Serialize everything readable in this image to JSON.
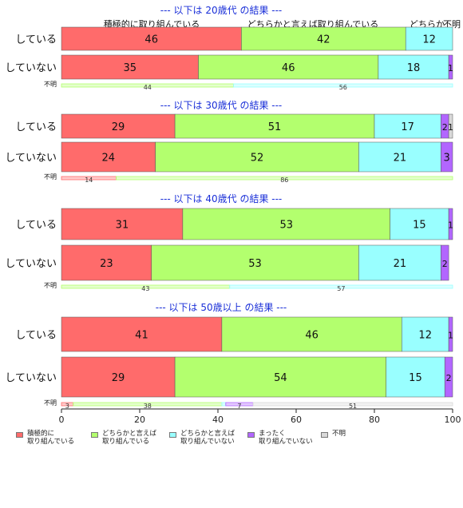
{
  "chart_data": {
    "type": "bar",
    "orientation": "horizontal",
    "stacked": true,
    "xlim": [
      0,
      100
    ],
    "xticks": [
      0,
      20,
      40,
      60,
      80,
      100
    ],
    "categories_legend": [
      "積極的に\n取り組んでいる",
      "どちらかと言えば\n取り組んでいる",
      "どちらかと言えば\n取り組んでいない",
      "まったく\n取り組んでいない",
      "不明"
    ],
    "category_colors": [
      "#ff6b6b",
      "#b3ff6e",
      "#99ffff",
      "#b266ff",
      "#d9d9d9"
    ],
    "top_headers": [
      "積極的に取り組んでいる",
      "どちらかと言えば取り組んでいる",
      "どちらか",
      "不明"
    ],
    "panels": [
      {
        "title": "--- 以下は 20歳代 の結果 ---",
        "rows": [
          {
            "label": "している",
            "values": [
              46,
              42,
              12,
              0,
              0
            ]
          },
          {
            "label": "していない",
            "values": [
              35,
              46,
              18,
              1,
              0
            ]
          }
        ],
        "unknown": {
          "label": "不明",
          "values": [
            0,
            44,
            56,
            0,
            0
          ]
        }
      },
      {
        "title": "--- 以下は 30歳代 の結果 ---",
        "rows": [
          {
            "label": "している",
            "values": [
              29,
              51,
              17,
              2,
              1
            ]
          },
          {
            "label": "していない",
            "values": [
              24,
              52,
              21,
              3,
              0
            ]
          }
        ],
        "unknown": {
          "label": "不明",
          "values": [
            14,
            86,
            0,
            0,
            0
          ]
        }
      },
      {
        "title": "--- 以下は 40歳代 の結果 ---",
        "rows": [
          {
            "label": "している",
            "values": [
              31,
              53,
              15,
              1,
              0
            ]
          },
          {
            "label": "していない",
            "values": [
              23,
              53,
              21,
              2,
              0
            ]
          }
        ],
        "unknown": {
          "label": "不明",
          "values": [
            0,
            43,
            57,
            0,
            0
          ]
        }
      },
      {
        "title": "--- 以下は 50歳以上 の結果 ---",
        "rows": [
          {
            "label": "している",
            "values": [
              41,
              46,
              12,
              1,
              0
            ]
          },
          {
            "label": "していない",
            "values": [
              29,
              54,
              15,
              2,
              0
            ]
          }
        ],
        "unknown": {
          "label": "不明",
          "values": [
            3,
            38,
            1,
            7,
            51
          ]
        }
      }
    ]
  }
}
